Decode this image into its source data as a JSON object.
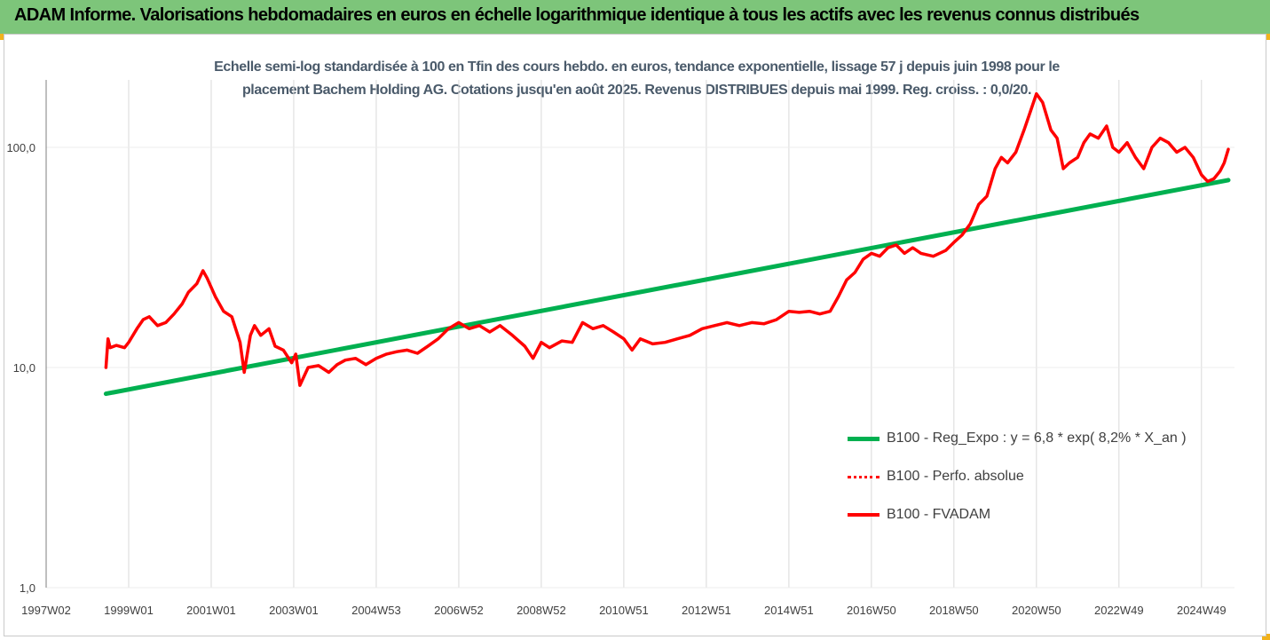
{
  "header": {
    "title": "ADAM Informe. Valorisations hebdomadaires en euros en échelle logarithmique identique à tous les actifs avec les revenus connus distribués"
  },
  "colors": {
    "header_bg": "#7dc57a",
    "corner_accent": "#f2b21c",
    "trend": "#00b050",
    "fvadam": "#ff0000",
    "perfo": "#ff0000",
    "grid": "#d9d9d9"
  },
  "chart_data": {
    "type": "line",
    "title": "Echelle semi-log standardisée à 100 en Tfin des cours hebdo. en euros, tendance exponentielle, lissage 57 j depuis juin 1998 pour le placement Bachem Holding AG. Cotations jusqu'en août 2025. Revenus DISTRIBUES depuis mai 1999. Reg. croiss. : 0,0/20.",
    "title_lines": [
      "Echelle semi-log standardisée à 100 en Tfin des cours hebdo. en euros, tendance exponentielle, lissage 57 j depuis juin 1998 pour le",
      "placement Bachem Holding AG. Cotations jusqu'en août 2025. Revenus DISTRIBUES depuis mai 1999. Reg. croiss. : 0,0/20."
    ],
    "y_scale": "log",
    "ylim": [
      1,
      200
    ],
    "y_ticks": [
      1,
      10,
      100
    ],
    "y_tick_labels": [
      "1,0",
      "10,0",
      "100,0"
    ],
    "x_range": [
      1997.0,
      2025.8
    ],
    "x_ticks": [
      1997.0,
      1999.0,
      2001.0,
      2003.0,
      2005.0,
      2007.0,
      2009.0,
      2011.0,
      2013.0,
      2015.0,
      2017.0,
      2019.0,
      2021.0,
      2023.0,
      2025.0
    ],
    "x_tick_labels": [
      "1997W02",
      "1999W01",
      "2001W01",
      "2003W01",
      "2004W53",
      "2006W52",
      "2008W52",
      "2010W51",
      "2012W51",
      "2014W51",
      "2016W50",
      "2018W50",
      "2020W50",
      "2022W49",
      "2024W49"
    ],
    "grid": "vertical",
    "legend_position": "right",
    "series": [
      {
        "name": "B100 - Reg_Expo : y = 6,8 * exp( 8,2% *  X_an )",
        "style": "solid",
        "color": "#00b050",
        "x": [
          1998.45,
          2025.65
        ],
        "y": [
          7.6,
          71
        ]
      },
      {
        "name": "B100 - Perfo. absolue",
        "style": "dotted",
        "color": "#ff0000",
        "x": [],
        "y": []
      },
      {
        "name": "B100 - FVADAM",
        "style": "solid",
        "color": "#ff0000",
        "x": [
          1998.45,
          1998.5,
          1998.55,
          1998.7,
          1998.9,
          1999.0,
          1999.2,
          1999.35,
          1999.5,
          1999.7,
          1999.9,
          2000.1,
          2000.3,
          2000.45,
          2000.65,
          2000.8,
          2000.9,
          2001.1,
          2001.3,
          2001.5,
          2001.7,
          2001.8,
          2001.95,
          2002.05,
          2002.2,
          2002.4,
          2002.55,
          2002.75,
          2002.95,
          2003.05,
          2003.15,
          2003.35,
          2003.6,
          2003.85,
          2004.05,
          2004.25,
          2004.5,
          2004.75,
          2005.0,
          2005.25,
          2005.5,
          2005.75,
          2006.0,
          2006.25,
          2006.5,
          2006.75,
          2007.0,
          2007.25,
          2007.5,
          2007.75,
          2008.0,
          2008.3,
          2008.6,
          2008.8,
          2009.0,
          2009.2,
          2009.5,
          2009.75,
          2010.0,
          2010.25,
          2010.5,
          2010.75,
          2011.0,
          2011.2,
          2011.4,
          2011.7,
          2012.0,
          2012.3,
          2012.6,
          2012.9,
          2013.2,
          2013.5,
          2013.8,
          2014.1,
          2014.4,
          2014.7,
          2015.0,
          2015.25,
          2015.5,
          2015.75,
          2016.0,
          2016.2,
          2016.4,
          2016.6,
          2016.8,
          2017.0,
          2017.2,
          2017.4,
          2017.6,
          2017.8,
          2018.0,
          2018.2,
          2018.5,
          2018.8,
          2019.0,
          2019.2,
          2019.4,
          2019.6,
          2019.8,
          2020.0,
          2020.15,
          2020.3,
          2020.5,
          2020.7,
          2020.85,
          2021.0,
          2021.15,
          2021.35,
          2021.5,
          2021.65,
          2021.8,
          2022.0,
          2022.15,
          2022.3,
          2022.5,
          2022.7,
          2022.85,
          2023.0,
          2023.2,
          2023.4,
          2023.6,
          2023.8,
          2024.0,
          2024.2,
          2024.4,
          2024.6,
          2024.8,
          2025.0,
          2025.15,
          2025.3,
          2025.45,
          2025.55,
          2025.65
        ],
        "y": [
          10.0,
          13.5,
          12.3,
          12.6,
          12.3,
          13.0,
          15.0,
          16.5,
          17.0,
          15.5,
          16.0,
          17.5,
          19.5,
          22.0,
          24.0,
          27.5,
          25.5,
          21.0,
          18.0,
          17.0,
          13.0,
          9.5,
          14.0,
          15.5,
          14.0,
          15.0,
          12.5,
          12.0,
          10.5,
          11.5,
          8.3,
          10.0,
          10.2,
          9.5,
          10.3,
          10.8,
          11.0,
          10.3,
          11.0,
          11.5,
          11.8,
          12.0,
          11.6,
          12.5,
          13.5,
          15.0,
          16.0,
          15.0,
          15.5,
          14.5,
          15.5,
          14.0,
          12.5,
          11.0,
          13.0,
          12.3,
          13.2,
          13.0,
          16.0,
          15.0,
          15.5,
          14.5,
          13.5,
          12.0,
          13.5,
          12.8,
          13.0,
          13.5,
          14.0,
          15.0,
          15.5,
          16.0,
          15.5,
          16.0,
          15.8,
          16.5,
          18.0,
          17.8,
          18.0,
          17.5,
          18.0,
          21.0,
          25.0,
          27.0,
          31.0,
          33.0,
          32.0,
          35.0,
          36.0,
          33.0,
          35.0,
          33.0,
          32.0,
          34.0,
          37.0,
          40.0,
          45.0,
          55.0,
          60.0,
          80.0,
          90.0,
          85.0,
          95.0,
          120.0,
          145.0,
          175.0,
          160.0,
          120.0,
          110.0,
          80.0,
          85.0,
          90.0,
          105.0,
          115.0,
          110.0,
          125.0,
          100.0,
          95.0,
          105.0,
          90.0,
          80.0,
          100.0,
          110.0,
          105.0,
          95.0,
          100.0,
          90.0,
          75.0,
          70.0,
          72.0,
          78.0,
          85.0,
          98.0
        ]
      }
    ]
  }
}
